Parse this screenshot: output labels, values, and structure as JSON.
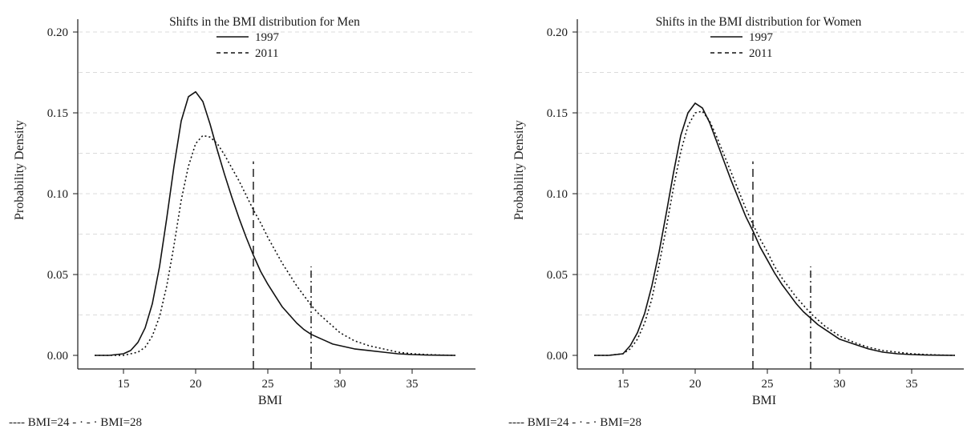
{
  "chart_data": [
    {
      "type": "line",
      "title": "Shifts in the BMI distribution for Men",
      "xlabel": "BMI",
      "ylabel": "Probability Density",
      "xlim": [
        13,
        38
      ],
      "ylim": [
        0,
        0.2
      ],
      "x_ticks": [
        "15",
        "20",
        "25",
        "30",
        "35"
      ],
      "y_ticks": [
        "0.00",
        "0.05",
        "0.10",
        "0.15",
        "0.20"
      ],
      "grid": true,
      "legend_position": "top-center",
      "x": [
        13,
        14,
        15,
        15.5,
        16,
        16.5,
        17,
        17.5,
        18,
        18.5,
        19,
        19.5,
        20,
        20.5,
        21,
        21.5,
        22,
        22.5,
        23,
        23.5,
        24,
        24.5,
        25,
        25.5,
        26,
        26.5,
        27,
        27.5,
        28,
        28.5,
        29,
        29.5,
        30,
        31,
        32,
        33,
        34,
        35,
        36,
        37,
        38
      ],
      "series": [
        {
          "name": "1997",
          "dash": "solid",
          "values": [
            0,
            0,
            0.001,
            0.003,
            0.008,
            0.017,
            0.032,
            0.055,
            0.085,
            0.117,
            0.145,
            0.16,
            0.163,
            0.157,
            0.143,
            0.127,
            0.112,
            0.098,
            0.085,
            0.073,
            0.062,
            0.052,
            0.044,
            0.037,
            0.03,
            0.025,
            0.02,
            0.016,
            0.013,
            0.011,
            0.009,
            0.007,
            0.006,
            0.004,
            0.003,
            0.002,
            0.001,
            0.0005,
            0.0002,
            0.0001,
            0
          ]
        },
        {
          "name": "2011",
          "dash": "dotted",
          "values": [
            0,
            0,
            0,
            0.001,
            0.002,
            0.005,
            0.012,
            0.024,
            0.043,
            0.068,
            0.096,
            0.117,
            0.131,
            0.136,
            0.135,
            0.131,
            0.124,
            0.116,
            0.108,
            0.099,
            0.09,
            0.082,
            0.073,
            0.065,
            0.057,
            0.05,
            0.043,
            0.037,
            0.031,
            0.026,
            0.022,
            0.018,
            0.014,
            0.009,
            0.006,
            0.004,
            0.002,
            0.001,
            0.0005,
            0.0002,
            0
          ]
        }
      ],
      "reference_lines": [
        {
          "x": 24,
          "y_top": 0.12,
          "dash": "dashed"
        },
        {
          "x": 28,
          "y_top": 0.055,
          "dash": "dashdot"
        }
      ],
      "footnote": "---- BMI=24 - · - · BMI=28"
    },
    {
      "type": "line",
      "title": "Shifts in the BMI distribution for Women",
      "xlabel": "BMI",
      "ylabel": "Probability Density",
      "xlim": [
        13,
        38
      ],
      "ylim": [
        0,
        0.2
      ],
      "x_ticks": [
        "15",
        "20",
        "25",
        "30",
        "35"
      ],
      "y_ticks": [
        "0.00",
        "0.05",
        "0.10",
        "0.15",
        "0.20"
      ],
      "grid": true,
      "legend_position": "top-center",
      "x": [
        13,
        14,
        15,
        15.5,
        16,
        16.5,
        17,
        17.5,
        18,
        18.5,
        19,
        19.5,
        20,
        20.5,
        21,
        21.5,
        22,
        22.5,
        23,
        23.5,
        24,
        24.5,
        25,
        25.5,
        26,
        26.5,
        27,
        27.5,
        28,
        28.5,
        29,
        29.5,
        30,
        31,
        32,
        33,
        34,
        35,
        36,
        37,
        38
      ],
      "series": [
        {
          "name": "1997",
          "dash": "solid",
          "values": [
            0,
            0,
            0.001,
            0.006,
            0.014,
            0.026,
            0.043,
            0.064,
            0.088,
            0.113,
            0.136,
            0.15,
            0.156,
            0.153,
            0.144,
            0.132,
            0.12,
            0.108,
            0.097,
            0.086,
            0.077,
            0.067,
            0.059,
            0.051,
            0.044,
            0.038,
            0.032,
            0.027,
            0.023,
            0.019,
            0.016,
            0.013,
            0.01,
            0.007,
            0.004,
            0.002,
            0.001,
            0.0005,
            0.0002,
            0.0001,
            0
          ]
        },
        {
          "name": "2011",
          "dash": "dotted",
          "values": [
            0,
            0,
            0.001,
            0.004,
            0.01,
            0.02,
            0.035,
            0.056,
            0.079,
            0.104,
            0.126,
            0.142,
            0.15,
            0.151,
            0.145,
            0.135,
            0.124,
            0.113,
            0.102,
            0.091,
            0.081,
            0.072,
            0.064,
            0.055,
            0.048,
            0.042,
            0.036,
            0.031,
            0.026,
            0.022,
            0.018,
            0.015,
            0.012,
            0.008,
            0.005,
            0.003,
            0.002,
            0.001,
            0.0005,
            0.0002,
            0
          ]
        }
      ],
      "reference_lines": [
        {
          "x": 24,
          "y_top": 0.12,
          "dash": "dashed"
        },
        {
          "x": 28,
          "y_top": 0.055,
          "dash": "dashdot"
        }
      ],
      "footnote": "---- BMI=24 - · - · BMI=28"
    }
  ]
}
